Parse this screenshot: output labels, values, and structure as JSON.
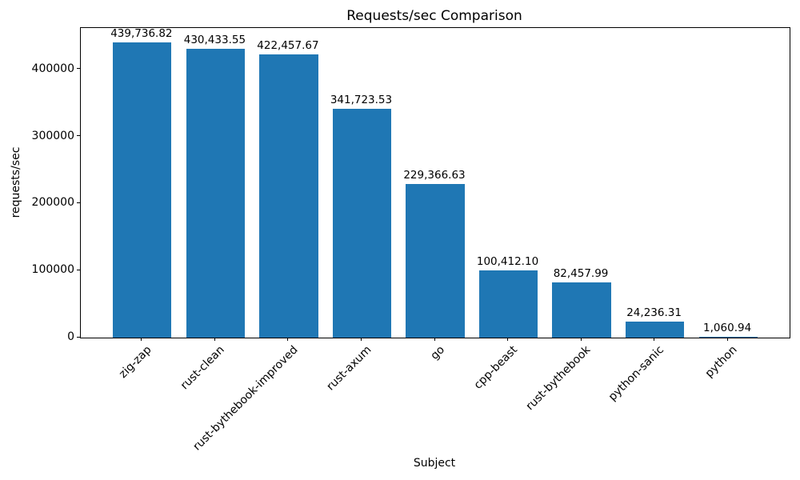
{
  "chart_data": {
    "type": "bar",
    "title": "Requests/sec Comparison",
    "xlabel": "Subject",
    "ylabel": "requests/sec",
    "categories": [
      "zig-zap",
      "rust-clean",
      "rust-bythebook-improved",
      "rust-axum",
      "go",
      "cpp-beast",
      "rust-bythebook",
      "python-sanic",
      "python"
    ],
    "values": [
      439736.82,
      430433.55,
      422457.67,
      341723.53,
      229366.63,
      100412.1,
      82457.99,
      24236.31,
      1060.94
    ],
    "value_labels": [
      "439,736.82",
      "430,433.55",
      "422,457.67",
      "341,723.53",
      "229,366.63",
      "100,412.10",
      "82,457.99",
      "24,236.31",
      "1,060.94"
    ],
    "ytick_values": [
      0,
      100000,
      200000,
      300000,
      400000
    ],
    "ytick_labels": [
      "0",
      "100000",
      "200000",
      "300000",
      "400000"
    ],
    "ylim": [
      0,
      461724
    ],
    "bar_color": "#1f77b4",
    "grid": false,
    "legend_position": "none"
  }
}
